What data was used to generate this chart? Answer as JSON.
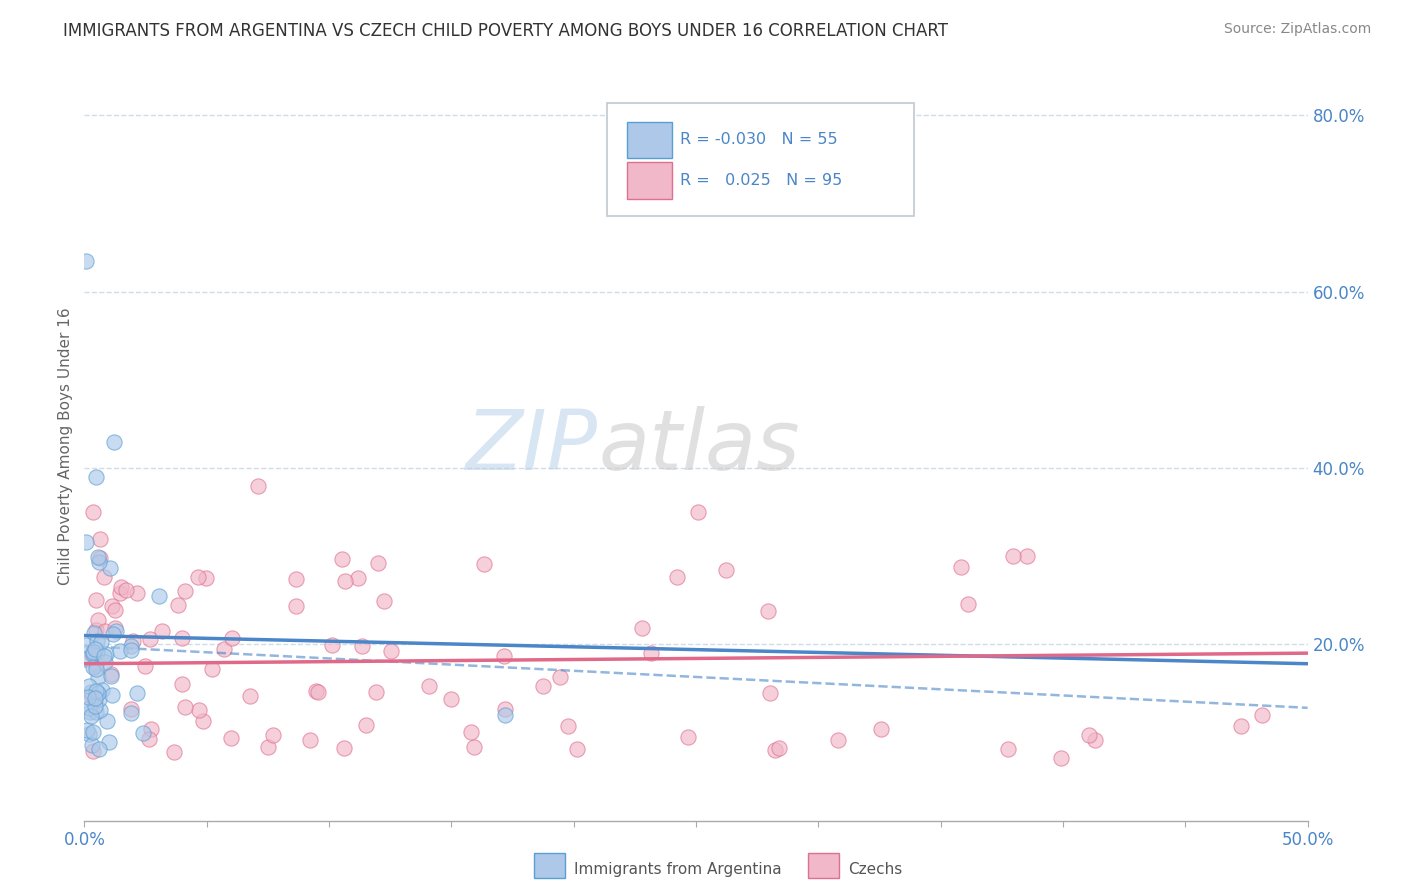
{
  "title": "IMMIGRANTS FROM ARGENTINA VS CZECH CHILD POVERTY AMONG BOYS UNDER 16 CORRELATION CHART",
  "source": "Source: ZipAtlas.com",
  "ylabel": "Child Poverty Among Boys Under 16",
  "xlim": [
    0.0,
    0.5
  ],
  "ylim": [
    0.0,
    0.85
  ],
  "xtick_vals": [
    0.0,
    0.05,
    0.1,
    0.15,
    0.2,
    0.25,
    0.3,
    0.35,
    0.4,
    0.45,
    0.5
  ],
  "xtick_labels": [
    "0.0%",
    "",
    "",
    "",
    "",
    "",
    "",
    "",
    "",
    "",
    "50.0%"
  ],
  "ytick_vals": [
    0.0,
    0.2,
    0.4,
    0.6,
    0.8
  ],
  "ytick_labels": [
    "",
    "20.0%",
    "40.0%",
    "60.0%",
    "80.0%"
  ],
  "legend_r1": "-0.030",
  "legend_n1": "55",
  "legend_r2": "0.025",
  "legend_n2": "95",
  "color_argentina_fill": "#adc8e8",
  "color_argentina_edge": "#5a9fd4",
  "color_czechs_fill": "#f0b8c8",
  "color_czechs_edge": "#e07090",
  "color_blue": "#4a86c8",
  "color_pink": "#e06888",
  "color_text_blue": "#4a86c8",
  "background_color": "#ffffff",
  "grid_color": "#d0dce8",
  "watermark_zip_color": "#b8d0e8",
  "watermark_atlas_color": "#c8c8c8",
  "argentina_trend": [
    0.21,
    0.178
  ],
  "czechs_trend": [
    0.178,
    0.19
  ],
  "argentina_dashed": [
    0.198,
    0.128
  ],
  "dot_size": 120,
  "dot_alpha": 0.65
}
